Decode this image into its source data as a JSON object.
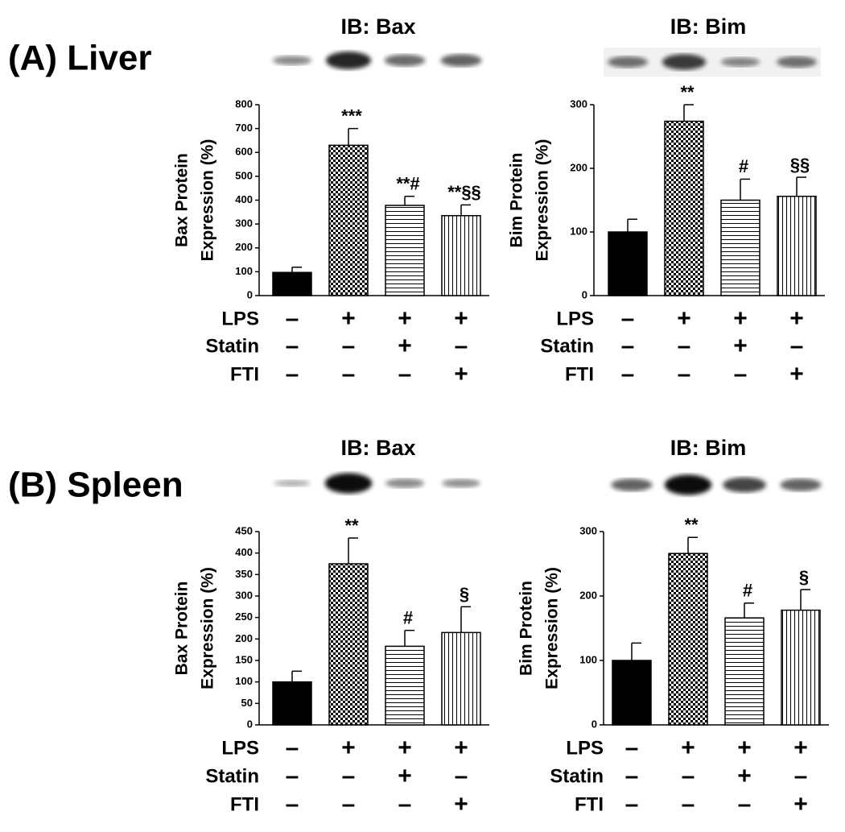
{
  "panel_labels": [
    "(A) Liver",
    "(B) Spleen"
  ],
  "chart_data": [
    {
      "type": "bar",
      "title": "IB: Bax",
      "ylabel": [
        "Bax Protein",
        "Expression (%)"
      ],
      "categories": [
        null,
        null,
        null,
        null
      ],
      "values": [
        97,
        630,
        378,
        335
      ],
      "errors": [
        22,
        70,
        38,
        45
      ],
      "annotations": [
        null,
        "***",
        "**#",
        "**§§"
      ],
      "bar_patterns": [
        "solid",
        "checker",
        "horizontal",
        "vertical"
      ],
      "ylim": [
        0,
        800
      ],
      "yticks": [
        0,
        100,
        200,
        300,
        400,
        500,
        600,
        700,
        800
      ],
      "treatments": [
        {
          "name": "LPS",
          "signs": [
            "–",
            "+",
            "+",
            "+"
          ]
        },
        {
          "name": "Statin",
          "signs": [
            "–",
            "–",
            "+",
            "–"
          ]
        },
        {
          "name": "FTI",
          "signs": [
            "–",
            "–",
            "–",
            "+"
          ]
        }
      ]
    },
    {
      "type": "bar",
      "title": "IB: Bim",
      "ylabel": [
        "Bim Protein",
        "Expression (%)"
      ],
      "categories": [
        null,
        null,
        null,
        null
      ],
      "values": [
        100,
        274,
        150,
        156
      ],
      "errors": [
        20,
        26,
        33,
        30
      ],
      "annotations": [
        null,
        "**",
        "#",
        "§§"
      ],
      "bar_patterns": [
        "solid",
        "checker",
        "horizontal",
        "vertical"
      ],
      "ylim": [
        0,
        300
      ],
      "yticks": [
        0,
        100,
        200,
        300
      ],
      "treatments": [
        {
          "name": "LPS",
          "signs": [
            "–",
            "+",
            "+",
            "+"
          ]
        },
        {
          "name": "Statin",
          "signs": [
            "–",
            "–",
            "+",
            "–"
          ]
        },
        {
          "name": "FTI",
          "signs": [
            "–",
            "–",
            "–",
            "+"
          ]
        }
      ]
    },
    {
      "type": "bar",
      "title": "IB: Bax",
      "ylabel": [
        "Bax Protein",
        "Expression (%)"
      ],
      "categories": [
        null,
        null,
        null,
        null
      ],
      "values": [
        100,
        375,
        183,
        215
      ],
      "errors": [
        25,
        60,
        37,
        60
      ],
      "annotations": [
        null,
        "**",
        "#",
        "§"
      ],
      "bar_patterns": [
        "solid",
        "checker",
        "horizontal",
        "vertical"
      ],
      "ylim": [
        0,
        450
      ],
      "yticks": [
        0,
        50,
        100,
        150,
        200,
        250,
        300,
        350,
        400,
        450
      ],
      "treatments": [
        {
          "name": "LPS",
          "signs": [
            "–",
            "+",
            "+",
            "+"
          ]
        },
        {
          "name": "Statin",
          "signs": [
            "–",
            "–",
            "+",
            "–"
          ]
        },
        {
          "name": "FTI",
          "signs": [
            "–",
            "–",
            "–",
            "+"
          ]
        }
      ]
    },
    {
      "type": "bar",
      "title": "IB: Bim",
      "ylabel": [
        "Bim Protein",
        "Expression (%)"
      ],
      "categories": [
        null,
        null,
        null,
        null
      ],
      "values": [
        100,
        266,
        166,
        178
      ],
      "errors": [
        27,
        25,
        23,
        32
      ],
      "annotations": [
        null,
        "**",
        "#",
        "§"
      ],
      "bar_patterns": [
        "solid",
        "checker",
        "horizontal",
        "vertical"
      ],
      "ylim": [
        0,
        300
      ],
      "yticks": [
        0,
        100,
        200,
        300
      ],
      "treatments": [
        {
          "name": "LPS",
          "signs": [
            "–",
            "+",
            "+",
            "+"
          ]
        },
        {
          "name": "Statin",
          "signs": [
            "–",
            "–",
            "+",
            "–"
          ]
        },
        {
          "name": "FTI",
          "signs": [
            "–",
            "–",
            "–",
            "+"
          ]
        }
      ]
    }
  ]
}
